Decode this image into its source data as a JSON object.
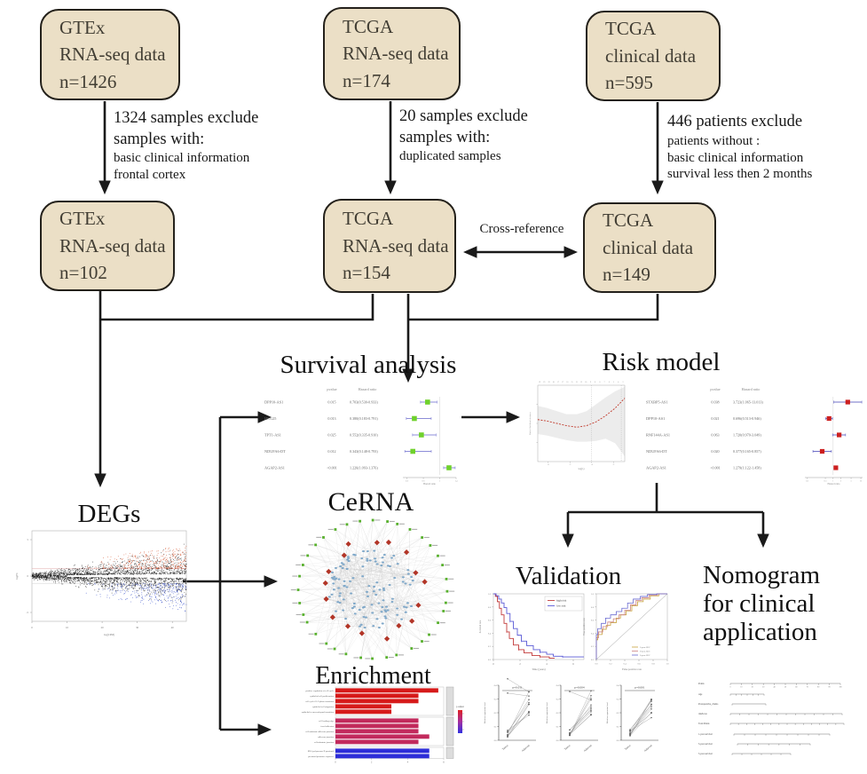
{
  "colors": {
    "box_fill": "#ebdfc6",
    "box_border": "#24211b",
    "arrow": "#1a1a1a",
    "survival_marker": "#6fd12c",
    "survival_ci": "#8d8dd8",
    "risk_marker": "#cc1f1f",
    "risk_ci": "#7070c8",
    "deg_up": "#d4491f",
    "deg_down": "#2d46c8",
    "deg_point": "#161616",
    "km_high": "#c23b3b",
    "km_low": "#5b5bd6",
    "bar_red": "#d61a1a",
    "bar_crimson": "#c22a5c",
    "bar_blue": "#2d2dd8",
    "net_outer": "#57b02c",
    "net_mid": "#b23527",
    "net_inner": "#7fa8c9",
    "net_edge": "#bfbfbf"
  },
  "boxes": [
    {
      "lines": [
        "GTEx",
        "RNA-seq data",
        "n=1426"
      ]
    },
    {
      "lines": [
        "TCGA",
        "RNA-seq data",
        "n=174"
      ]
    },
    {
      "lines": [
        "TCGA",
        "clinical data",
        "n=595"
      ]
    },
    {
      "lines": [
        "GTEx",
        "RNA-seq data",
        "n=102"
      ]
    },
    {
      "lines": [
        "TCGA",
        "RNA-seq data",
        "n=154"
      ]
    },
    {
      "lines": [
        "TCGA",
        "clinical data",
        "n=149"
      ]
    }
  ],
  "exclusions": [
    {
      "head": [
        "1324 samples exclude",
        "samples with:"
      ],
      "detail": [
        "basic clinical information",
        "frontal cortex"
      ]
    },
    {
      "head": [
        "20 samples exclude",
        "samples with:"
      ],
      "detail": [
        "duplicated samples"
      ]
    },
    {
      "head": [
        "446 patients exclude"
      ],
      "detail": [
        "patients without :",
        "basic clinical information",
        "survival less then 2 months"
      ]
    }
  ],
  "cross_reference_label": "Cross-reference",
  "titles": {
    "survival": "Survival analysis",
    "risk": "Risk model",
    "degs": "DEGs",
    "cerna": "CeRNA",
    "enrichment": "Enrichment",
    "validation": "Validation",
    "nomogram_lines": [
      "Nomogram",
      "for clinical",
      "application"
    ]
  },
  "chart_data": [
    {
      "id": "survival_forest",
      "type": "scatter",
      "subtype": "forest",
      "columns": [
        "pvalue",
        "Hazard ratio"
      ],
      "rows": [
        {
          "gene": "DPP10-AS1",
          "pvalue": "0.015",
          "hr": "0.703(0.530-0.933)",
          "est": 0.703,
          "lo": 0.53,
          "hi": 0.933
        },
        {
          "gene": "HCG25",
          "pvalue": "0.013",
          "hr": "0.380(0.183-0.791)",
          "est": 0.38,
          "lo": 0.183,
          "hi": 0.791
        },
        {
          "gene": "TPT1-AS1",
          "pvalue": "0.025",
          "hr": "0.552(0.335-0.910)",
          "est": 0.552,
          "lo": 0.335,
          "hi": 0.91
        },
        {
          "gene": "NDUFA6-DT",
          "pvalue": "0.012",
          "hr": "0.343(0.148-0.793)",
          "est": 0.343,
          "lo": 0.148,
          "hi": 0.793
        },
        {
          "gene": "AGAP2-AS1",
          "pvalue": "<0.001",
          "hr": "1.226(1.093-1.376)",
          "est": 1.226,
          "lo": 1.093,
          "hi": 1.376
        }
      ],
      "marker_color": "#6fd12c",
      "ci_color": "#8d8dd8",
      "xlim": [
        0.1,
        1.4
      ],
      "log_scale": false,
      "xlabel": "Hazard ratio"
    },
    {
      "id": "risk_lasso",
      "type": "line",
      "xlabel": "log(λ)",
      "ylabel": "Partial likelihood deviance",
      "df_ticks": [
        "19",
        "19",
        "19",
        "18",
        "17",
        "17",
        "16",
        "15",
        "13",
        "12",
        "10",
        "9",
        "8",
        "8",
        "7",
        "6",
        "5",
        "4",
        "2"
      ],
      "t": [
        0,
        0.11,
        0.22,
        0.33,
        0.45,
        0.56,
        0.67,
        0.78,
        0.89,
        1
      ],
      "curve": [
        0.45,
        0.47,
        0.5,
        0.53,
        0.55,
        0.53,
        0.48,
        0.4,
        0.3,
        0.17
      ],
      "upper": [
        0.27,
        0.3,
        0.34,
        0.38,
        0.38,
        0.34,
        0.25,
        0.16,
        0.08,
        0.02
      ],
      "lower": [
        0.64,
        0.66,
        0.69,
        0.72,
        0.74,
        0.74,
        0.73,
        0.7,
        0.76,
        0.93
      ],
      "vlines": [
        0.62,
        0.96
      ],
      "line_color": "#c0392b",
      "band_color": "#dcdcdc"
    },
    {
      "id": "risk_forest",
      "type": "scatter",
      "subtype": "forest",
      "columns": [
        "pvalue",
        "Hazard ratio"
      ],
      "rows": [
        {
          "gene": "STXBP5-AS1",
          "pvalue": "0.038",
          "hr": "3.723(1.065-13.013)",
          "est": 3.723,
          "lo": 1.065,
          "hi": 13.013
        },
        {
          "gene": "DPP10-AS1",
          "pvalue": "0.021",
          "hr": "0.696(0.513-0.946)",
          "est": 0.696,
          "lo": 0.513,
          "hi": 0.946
        },
        {
          "gene": "RNF144A-AS1",
          "pvalue": "0.063",
          "hr": "1.720(0.970-3.049)",
          "est": 1.72,
          "lo": 0.97,
          "hi": 3.049
        },
        {
          "gene": "NDUFA6-DT",
          "pvalue": "0.020",
          "hr": "0.377(0.165-0.857)",
          "est": 0.377,
          "lo": 0.165,
          "hi": 0.857
        },
        {
          "gene": "AGAP2-AS1",
          "pvalue": "<0.001",
          "hr": "1.279(1.122-1.458)",
          "est": 1.279,
          "lo": 1.122,
          "hi": 1.458
        }
      ],
      "marker_color": "#cc1f1f",
      "ci_color": "#7070c8",
      "xlim": [
        0.08,
        14
      ],
      "log_scale": true,
      "xlabel": "Hazard ratio"
    },
    {
      "id": "deg_ma",
      "type": "scatter",
      "xlabel": "log(CPM)",
      "ylabel": "logFC",
      "x_ticks": [
        0,
        10,
        20,
        30,
        40
      ],
      "y_ticks": [
        -5,
        0,
        5
      ],
      "threshold_lines": [
        1,
        -1
      ],
      "point_color": "#161616",
      "up_color": "#d4491f",
      "down_color": "#2d46c8"
    },
    {
      "id": "cerna_network",
      "type": "scatter",
      "subtype": "network",
      "outer_count": 36,
      "outer_color": "#57b02c",
      "mid_count": 17,
      "mid_color": "#b23527",
      "inner_count": 118,
      "inner_color": "#7fa8c9",
      "edge_color": "#bfbfbf"
    },
    {
      "id": "enrichment",
      "type": "bar",
      "orientation": "horizontal",
      "x_ticks": [
        0,
        2,
        4,
        6
      ],
      "legend_label": "p adjust",
      "groups": [
        {
          "color": "#d61a1a",
          "labels": [
            "positive regulation of cell cycle",
            "epithelial cell proliferation",
            "cell cycle G1/S phase transition",
            "epithelial cell migration",
            "epithelial to mesenchymal transition"
          ],
          "values": [
            5.7,
            4.6,
            4.6,
            3.1,
            3.1
          ]
        },
        {
          "color": "#c22a5c",
          "labels": [
            "cell leading edge",
            "focal adhesion",
            "cell-substrate adherens junction",
            "adherens junction",
            "cell-substrate junction"
          ],
          "values": [
            4.6,
            4.6,
            4.6,
            5.2,
            4.6
          ]
        },
        {
          "color": "#2d2dd8",
          "labels": [
            "RNA polymerase II proximal",
            "proximal promoter sequence"
          ],
          "values": [
            5.2,
            5.2
          ]
        }
      ]
    },
    {
      "id": "km",
      "type": "line",
      "xlabel": "Time (years)",
      "ylabel": "Survival rate",
      "x_ticks": [
        0,
        2,
        4,
        6
      ],
      "y_ticks": [
        0,
        0.2,
        0.4,
        0.6,
        0.8,
        1
      ],
      "series": [
        {
          "name": "high risk",
          "color": "#c23b3b",
          "points": [
            [
              0,
              1
            ],
            [
              0.15,
              0.96
            ],
            [
              0.3,
              0.88
            ],
            [
              0.45,
              0.78
            ],
            [
              0.6,
              0.68
            ],
            [
              0.8,
              0.55
            ],
            [
              1,
              0.42
            ],
            [
              1.2,
              0.32
            ],
            [
              1.5,
              0.22
            ],
            [
              1.9,
              0.15
            ],
            [
              2.3,
              0.1
            ],
            [
              2.9,
              0.06
            ],
            [
              3.5,
              0.04
            ],
            [
              4.2,
              0.02
            ],
            [
              4.6,
              0.02
            ]
          ]
        },
        {
          "name": "low risk",
          "color": "#5b5bd6",
          "points": [
            [
              0,
              1
            ],
            [
              0.2,
              0.97
            ],
            [
              0.4,
              0.92
            ],
            [
              0.6,
              0.86
            ],
            [
              0.8,
              0.79
            ],
            [
              1,
              0.7
            ],
            [
              1.25,
              0.58
            ],
            [
              1.5,
              0.47
            ],
            [
              1.8,
              0.37
            ],
            [
              2.1,
              0.28
            ],
            [
              2.5,
              0.21
            ],
            [
              3,
              0.15
            ],
            [
              3.5,
              0.11
            ],
            [
              4,
              0.08
            ],
            [
              4.5,
              0.05
            ],
            [
              5.2,
              0.04
            ],
            [
              6.8,
              0.04
            ]
          ]
        }
      ]
    },
    {
      "id": "roc",
      "type": "line",
      "xlabel": "False positive rate",
      "ylabel": "True positive rate",
      "x_ticks": [
        0,
        0.2,
        0.4,
        0.6,
        0.8,
        1
      ],
      "diagonal": true,
      "series": [
        {
          "name": "1-year AUC",
          "color": "#c8a23c",
          "points": [
            [
              0,
              0
            ],
            [
              0.02,
              0.3
            ],
            [
              0.08,
              0.38
            ],
            [
              0.14,
              0.46
            ],
            [
              0.2,
              0.52
            ],
            [
              0.28,
              0.56
            ],
            [
              0.34,
              0.63
            ],
            [
              0.42,
              0.68
            ],
            [
              0.5,
              0.74
            ],
            [
              0.58,
              0.82
            ],
            [
              0.66,
              0.88
            ],
            [
              0.76,
              0.92
            ],
            [
              0.88,
              0.97
            ],
            [
              1,
              1
            ]
          ]
        },
        {
          "name": "3-year AUC",
          "color": "#cc8484",
          "points": [
            [
              0,
              0
            ],
            [
              0.03,
              0.33
            ],
            [
              0.09,
              0.42
            ],
            [
              0.16,
              0.5
            ],
            [
              0.24,
              0.57
            ],
            [
              0.32,
              0.62
            ],
            [
              0.4,
              0.68
            ],
            [
              0.48,
              0.75
            ],
            [
              0.56,
              0.83
            ],
            [
              0.64,
              0.9
            ],
            [
              0.74,
              0.94
            ],
            [
              0.86,
              0.98
            ],
            [
              1,
              1
            ]
          ]
        },
        {
          "name": "5-year AUC",
          "color": "#6a6ad0",
          "points": [
            [
              0,
              0
            ],
            [
              0.02,
              0.38
            ],
            [
              0.07,
              0.47
            ],
            [
              0.13,
              0.55
            ],
            [
              0.2,
              0.63
            ],
            [
              0.28,
              0.68
            ],
            [
              0.36,
              0.73
            ],
            [
              0.44,
              0.78
            ],
            [
              0.52,
              0.86
            ],
            [
              0.62,
              0.92
            ],
            [
              0.72,
              0.96
            ],
            [
              0.85,
              0.99
            ],
            [
              1,
              1
            ]
          ]
        }
      ]
    },
    {
      "id": "paired_expression",
      "type": "line",
      "ylabel": "Relative expression level",
      "categories": [
        "Tumor",
        "Adjacent"
      ],
      "y_ticks": [
        0,
        0.1,
        0.2,
        0.3,
        0.4
      ],
      "panels": [
        {
          "p_label": "p=0.011",
          "desc_pairs": 2
        },
        {
          "p_label": "p=0.004",
          "desc_pairs": 1
        },
        {
          "p_label": "p=0.001",
          "desc_pairs": 0
        }
      ]
    },
    {
      "id": "nomogram",
      "type": "table",
      "row_labels": [
        "Points",
        "Age",
        "Postoperative_chemo",
        "riskScore",
        "Total Points",
        "1-year survival",
        "3-year survival",
        "5-year survival"
      ],
      "points_scale": [
        "0",
        "10",
        "20",
        "30",
        "40",
        "50",
        "60",
        "70",
        "80",
        "90",
        "100"
      ]
    }
  ]
}
